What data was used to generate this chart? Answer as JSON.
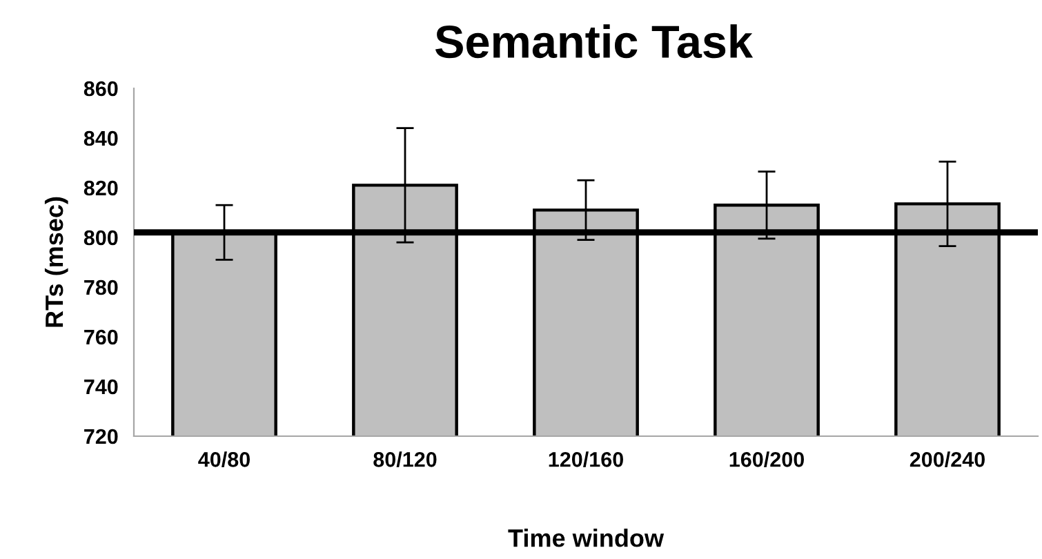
{
  "chart_data": {
    "type": "bar",
    "title": "Semantic Task",
    "xlabel": "Time window",
    "ylabel": "RTs (msec)",
    "categories": [
      "40/80",
      "80/120",
      "120/160",
      "160/200",
      "200/240"
    ],
    "values": [
      802,
      821,
      811,
      813,
      813.5
    ],
    "errors": [
      11,
      23,
      12,
      13.5,
      17
    ],
    "color": "#bfbfbf",
    "ylim": [
      720,
      860
    ],
    "yticks": [
      720,
      740,
      760,
      780,
      800,
      820,
      840,
      860
    ],
    "ref_lines": [
      {
        "axis": "y",
        "value": 802,
        "color": "#000000"
      }
    ]
  }
}
